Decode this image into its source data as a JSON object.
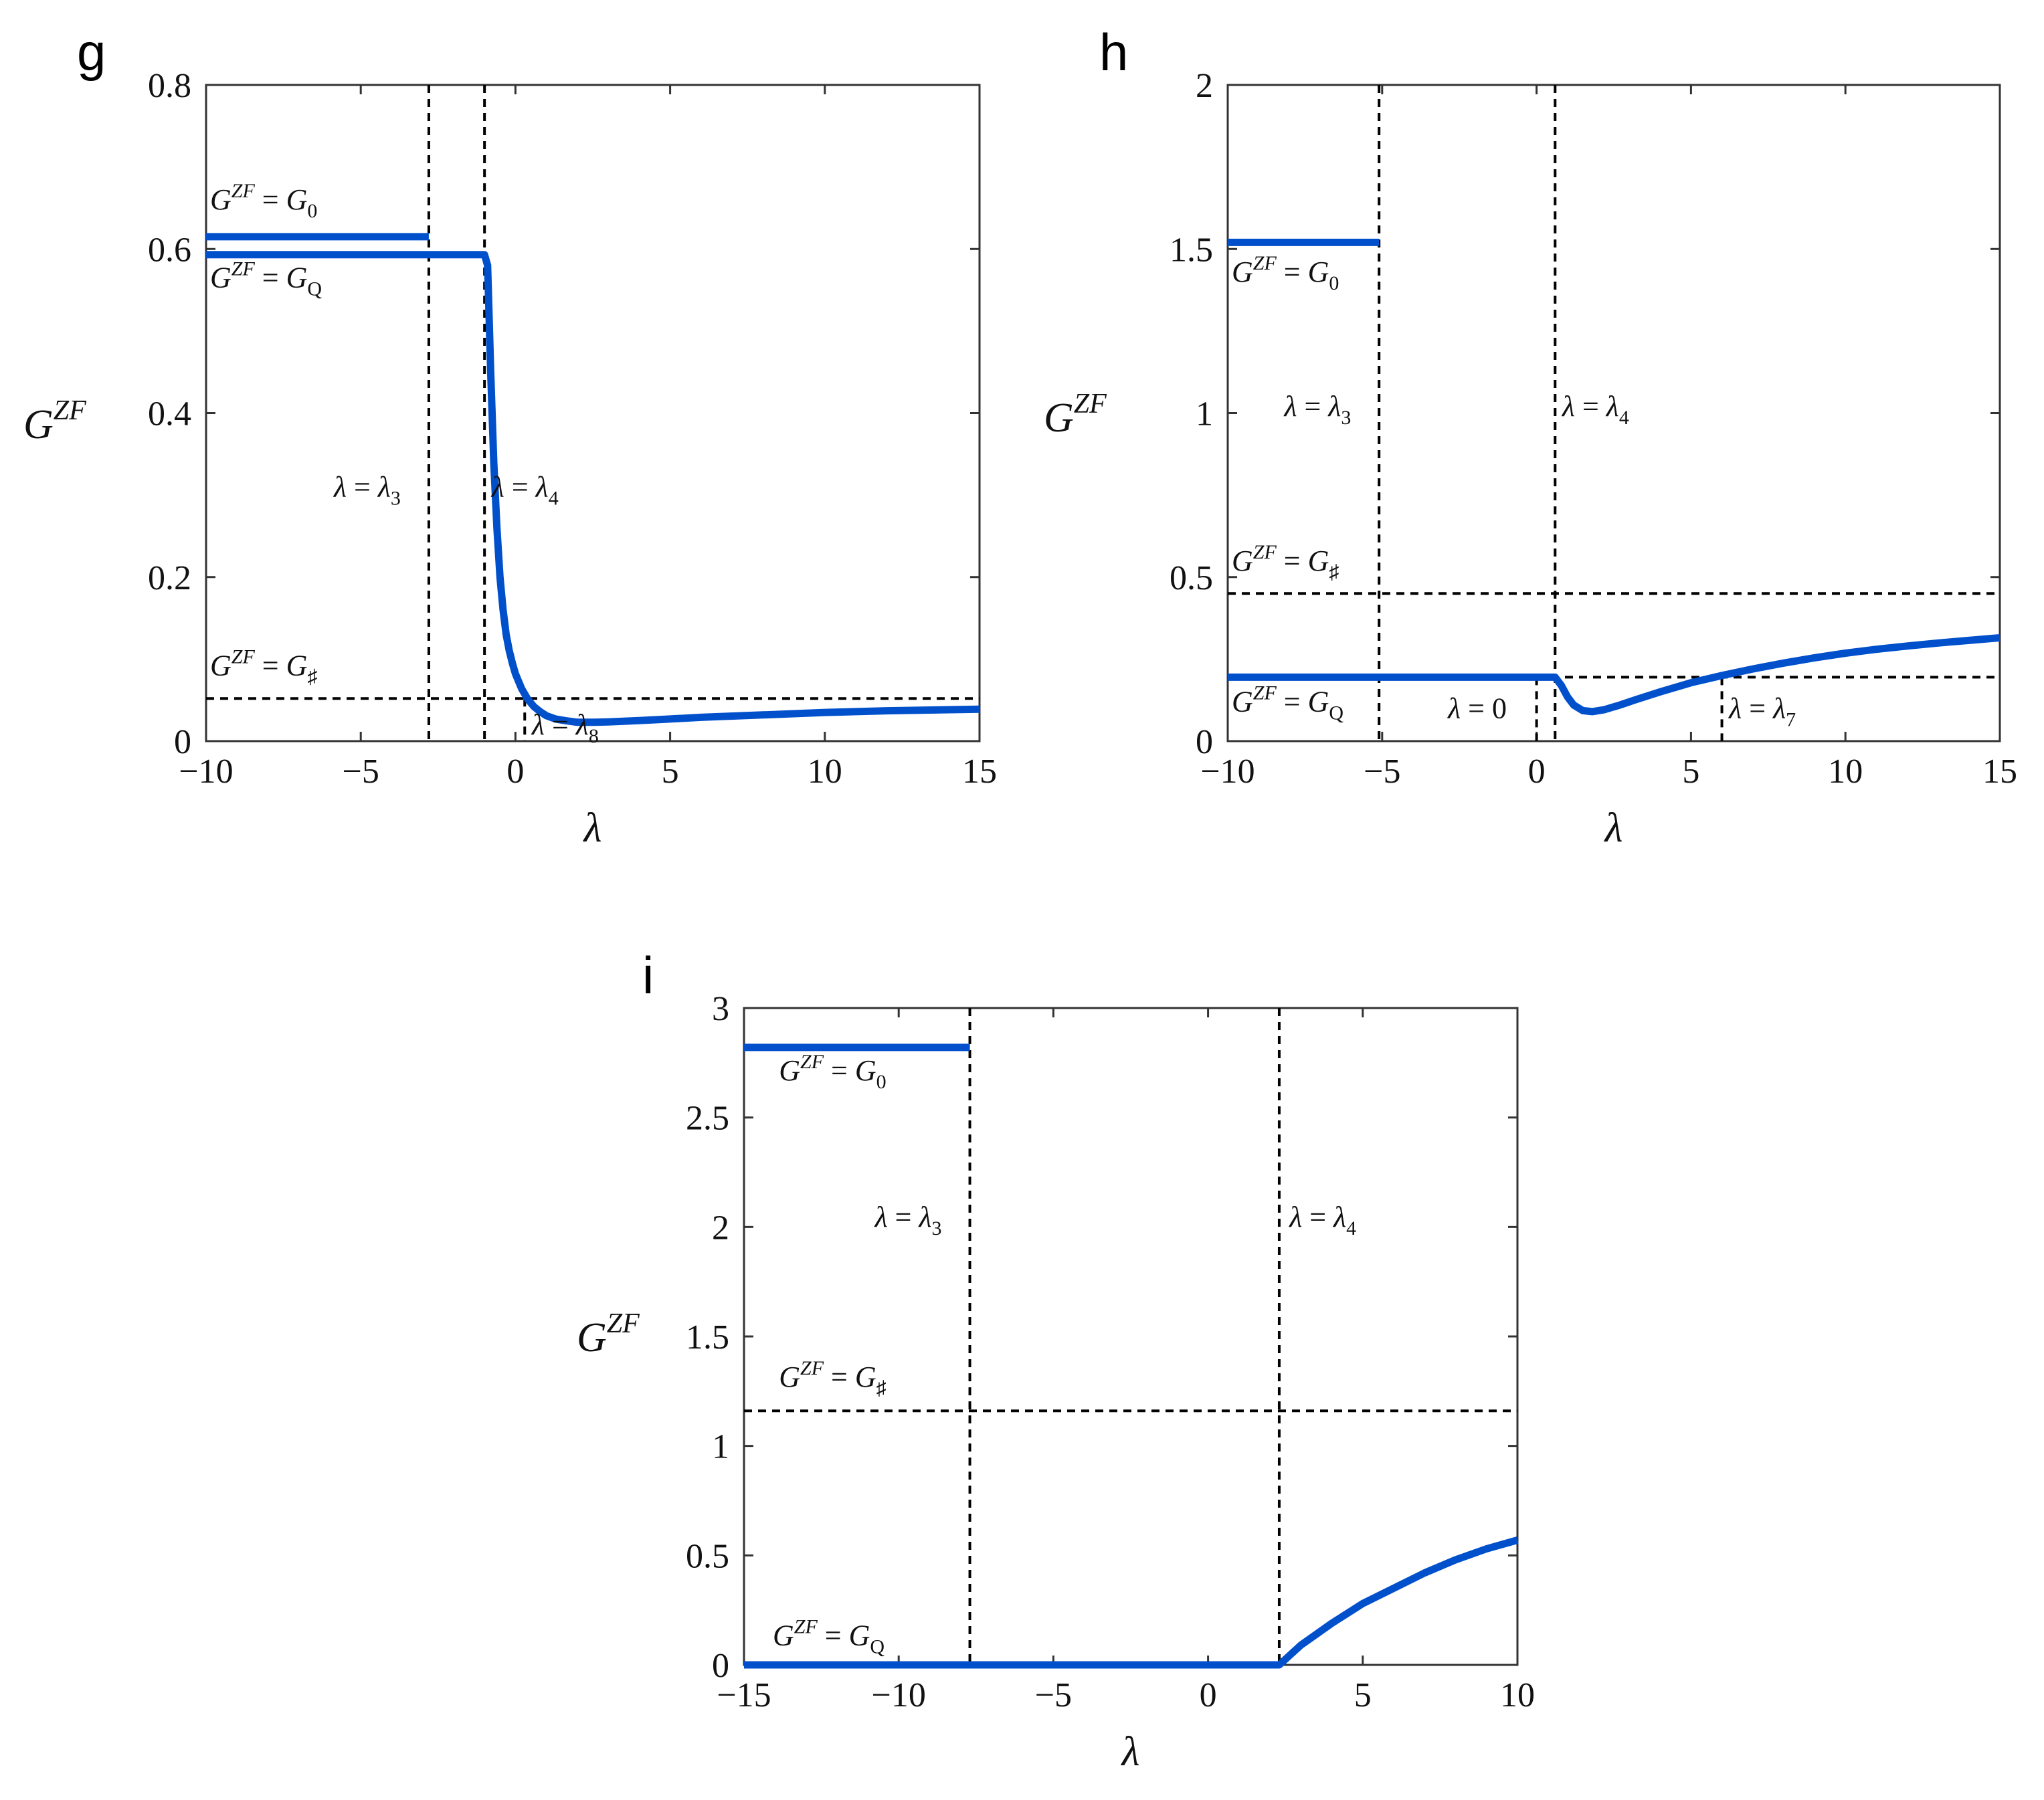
{
  "colors": {
    "curve": "#0050CC",
    "reference": "#000000",
    "frame": "#333333"
  },
  "chart_data": [
    {
      "panel_label": "g",
      "type": "line",
      "xlabel": "λ",
      "ylabel": "G^ZF",
      "ylabel_base": "G",
      "ylabel_sup": "ZF",
      "xlim": [
        -10,
        15
      ],
      "ylim": [
        0,
        0.8
      ],
      "xticks": [
        -10,
        -5,
        0,
        5,
        10,
        15
      ],
      "xtick_labels": [
        "−10",
        "−5",
        "0",
        "5",
        "10",
        "15"
      ],
      "yticks": [
        0,
        0.2,
        0.4,
        0.6,
        0.8
      ],
      "ytick_labels": [
        "0",
        "0.2",
        "0.4",
        "0.6",
        "0.8"
      ],
      "series": [
        {
          "name": "G^ZF = G_0 branch",
          "x": [
            -10,
            -2.8
          ],
          "y": [
            0.615,
            0.615
          ]
        },
        {
          "name": "G^ZF main branch",
          "x": [
            -10,
            -1.0,
            -0.9,
            -0.8,
            -0.7,
            -0.6,
            -0.5,
            -0.4,
            -0.3,
            -0.2,
            -0.1,
            0,
            0.2,
            0.4,
            0.6,
            0.8,
            1.0,
            1.3,
            1.6,
            2.0,
            2.5,
            3.0,
            4.0,
            5.0,
            6.0,
            8.0,
            10.0,
            12.0,
            15.0
          ],
          "y": [
            0.593,
            0.593,
            0.58,
            0.45,
            0.34,
            0.26,
            0.2,
            0.16,
            0.13,
            0.11,
            0.095,
            0.082,
            0.064,
            0.051,
            0.042,
            0.036,
            0.031,
            0.027,
            0.025,
            0.023,
            0.023,
            0.0235,
            0.025,
            0.027,
            0.029,
            0.032,
            0.035,
            0.037,
            0.039
          ]
        }
      ],
      "hlines": [
        {
          "y": 0.052,
          "name": "G_sharp"
        }
      ],
      "vlines": [
        {
          "x": -2.8,
          "name": "lambda_3"
        },
        {
          "x": -1.0,
          "name": "lambda_4"
        },
        {
          "x": 0.3,
          "name": "lambda_8",
          "to_y": 0.052
        }
      ],
      "annotations": [
        {
          "key": "g0",
          "base": "G",
          "sup": "ZF",
          "rhs": "G",
          "rhs_sub": "0",
          "pos": [
            -10,
            0.64
          ]
        },
        {
          "key": "gq",
          "base": "G",
          "sup": "ZF",
          "rhs": "G",
          "rhs_sub": "Q",
          "pos": [
            -10,
            0.545
          ]
        },
        {
          "key": "gs",
          "base": "G",
          "sup": "ZF",
          "rhs": "G",
          "rhs_sub": "♯",
          "pos": [
            -10,
            0.072
          ]
        },
        {
          "key": "l3",
          "base": "λ",
          "rhs": "λ",
          "rhs_sub": "3",
          "pos": [
            -6.0,
            0.29
          ]
        },
        {
          "key": "l4",
          "base": "λ",
          "rhs": "λ",
          "rhs_sub": "4",
          "pos": [
            -0.9,
            0.29
          ]
        },
        {
          "key": "l8",
          "base": "λ",
          "rhs": "λ",
          "rhs_sub": "8",
          "pos": [
            0.4,
            0.0
          ]
        }
      ]
    },
    {
      "panel_label": "h",
      "type": "line",
      "xlabel": "λ",
      "ylabel": "G^ZF",
      "ylabel_base": "G",
      "ylabel_sup": "ZF",
      "xlim": [
        -10,
        15
      ],
      "ylim": [
        0,
        2
      ],
      "xticks": [
        -10,
        -5,
        0,
        5,
        10,
        15
      ],
      "xtick_labels": [
        "−10",
        "−5",
        "0",
        "5",
        "10",
        "15"
      ],
      "yticks": [
        0,
        0.5,
        1,
        1.5,
        2
      ],
      "ytick_labels": [
        "0",
        "0.5",
        "1",
        "1.5",
        "2"
      ],
      "series": [
        {
          "name": "G^ZF = G_0 branch",
          "x": [
            -10,
            -5.1
          ],
          "y": [
            1.52,
            1.52
          ]
        },
        {
          "name": "G^ZF main branch",
          "x": [
            -10,
            0.6,
            0.8,
            1.0,
            1.2,
            1.5,
            1.8,
            2.2,
            2.7,
            3.2,
            4.0,
            5.0,
            6.0,
            7.0,
            8.0,
            9.0,
            10.0,
            11.0,
            12.0,
            13.0,
            14.0,
            15.0
          ],
          "y": [
            0.195,
            0.195,
            0.17,
            0.135,
            0.11,
            0.093,
            0.09,
            0.096,
            0.11,
            0.126,
            0.15,
            0.178,
            0.2,
            0.22,
            0.238,
            0.254,
            0.268,
            0.28,
            0.29,
            0.299,
            0.307,
            0.315
          ]
        }
      ],
      "hlines": [
        {
          "y": 0.45,
          "name": "G_sharp"
        },
        {
          "y": 0.195,
          "name": "G_Q level"
        }
      ],
      "vlines": [
        {
          "x": -5.1,
          "name": "lambda_3"
        },
        {
          "x": 0.6,
          "name": "lambda_4"
        },
        {
          "x": 0.0,
          "name": "lambda_0",
          "to_y": 0.195
        },
        {
          "x": 6.0,
          "name": "lambda_7",
          "to_y": 0.195
        }
      ],
      "annotations": [
        {
          "key": "g0",
          "base": "G",
          "sup": "ZF",
          "rhs": "G",
          "rhs_sub": "0",
          "pos": [
            -10,
            1.38
          ]
        },
        {
          "key": "gs",
          "base": "G",
          "sup": "ZF",
          "rhs": "G",
          "rhs_sub": "♯",
          "pos": [
            -10,
            0.5
          ]
        },
        {
          "key": "gq",
          "base": "G",
          "sup": "ZF",
          "rhs": "G",
          "rhs_sub": "Q",
          "pos": [
            -10,
            0.07
          ]
        },
        {
          "key": "l3",
          "base": "λ",
          "rhs": "λ",
          "rhs_sub": "3",
          "pos": [
            -8.3,
            0.97
          ]
        },
        {
          "key": "l4",
          "base": "λ",
          "rhs": "λ",
          "rhs_sub": "4",
          "pos": [
            0.7,
            0.97
          ]
        },
        {
          "key": "l0",
          "base": "λ",
          "rhs": "0",
          "pos": [
            -3.0,
            0.05
          ]
        },
        {
          "key": "l7",
          "base": "λ",
          "rhs": "λ",
          "rhs_sub": "7",
          "pos": [
            6.1,
            0.05
          ]
        }
      ]
    },
    {
      "panel_label": "i",
      "type": "line",
      "xlabel": "λ",
      "ylabel": "G^ZF",
      "ylabel_base": "G",
      "ylabel_sup": "ZF",
      "xlim": [
        -15,
        10
      ],
      "ylim": [
        0,
        3
      ],
      "xticks": [
        -15,
        -10,
        -5,
        0,
        5,
        10
      ],
      "xtick_labels": [
        "−15",
        "−10",
        "−5",
        "0",
        "5",
        "10"
      ],
      "yticks": [
        0,
        0.5,
        1,
        1.5,
        2,
        2.5,
        3
      ],
      "ytick_labels": [
        "0",
        "0.5",
        "1",
        "1.5",
        "2",
        "2.5",
        "3"
      ],
      "series": [
        {
          "name": "G^ZF = G_0 branch",
          "x": [
            -15,
            -7.7
          ],
          "y": [
            2.82,
            2.82
          ]
        },
        {
          "name": "G^ZF main branch",
          "x": [
            -15,
            2.3,
            3.0,
            4.0,
            5.0,
            6.0,
            7.0,
            8.0,
            9.0,
            10.0
          ],
          "y": [
            0,
            0,
            0.09,
            0.19,
            0.28,
            0.35,
            0.42,
            0.48,
            0.53,
            0.57
          ]
        }
      ],
      "hlines": [
        {
          "y": 1.16,
          "name": "G_sharp"
        }
      ],
      "vlines": [
        {
          "x": -7.7,
          "name": "lambda_3"
        },
        {
          "x": 2.3,
          "name": "lambda_4"
        }
      ],
      "annotations": [
        {
          "key": "g0",
          "base": "G",
          "sup": "ZF",
          "rhs": "G",
          "rhs_sub": "0",
          "pos": [
            -14.0,
            2.64
          ]
        },
        {
          "key": "gs",
          "base": "G",
          "sup": "ZF",
          "rhs": "G",
          "rhs_sub": "♯",
          "pos": [
            -14.0,
            1.24
          ]
        },
        {
          "key": "gq",
          "base": "G",
          "sup": "ZF",
          "rhs": "G",
          "rhs_sub": "Q",
          "pos": [
            -14.2,
            0.06
          ]
        },
        {
          "key": "l3",
          "base": "λ",
          "rhs": "λ",
          "rhs_sub": "3",
          "pos": [
            -10.9,
            1.97
          ]
        },
        {
          "key": "l4",
          "base": "λ",
          "rhs": "λ",
          "rhs_sub": "4",
          "pos": [
            2.5,
            1.97
          ]
        }
      ]
    }
  ]
}
